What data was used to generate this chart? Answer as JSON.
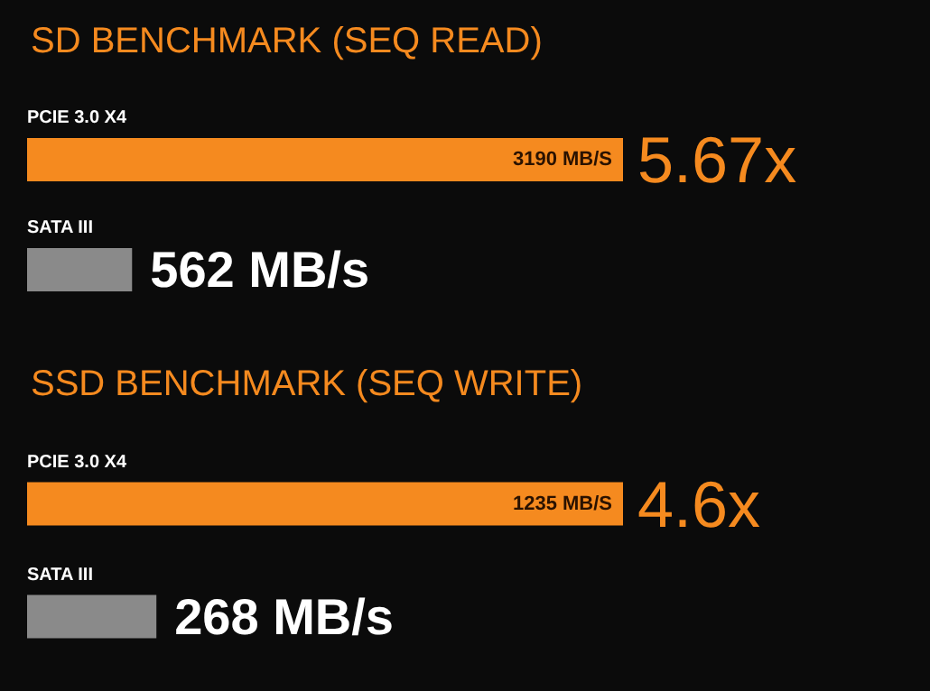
{
  "chart_data": [
    {
      "type": "bar",
      "orientation": "horizontal",
      "title": "SD BENCHMARK (SEQ READ)",
      "categories": [
        "PCIE 3.0 X4",
        "SATA III"
      ],
      "values": [
        3190,
        562
      ],
      "colors": [
        "#f58a1f",
        "#8a8a8a"
      ],
      "value_labels": [
        "3190 MB/S",
        "562 MB/s"
      ],
      "annotations": [
        "5.67x"
      ]
    },
    {
      "type": "bar",
      "orientation": "horizontal",
      "title": "SSD BENCHMARK (SEQ WRITE)",
      "categories": [
        "PCIE 3.0 X4",
        "SATA III"
      ],
      "values": [
        1235,
        268
      ],
      "colors": [
        "#f58a1f",
        "#8a8a8a"
      ],
      "value_labels": [
        "1235 MB/S",
        "268 MB/s"
      ],
      "annotations": [
        "4.6x"
      ]
    }
  ]
}
